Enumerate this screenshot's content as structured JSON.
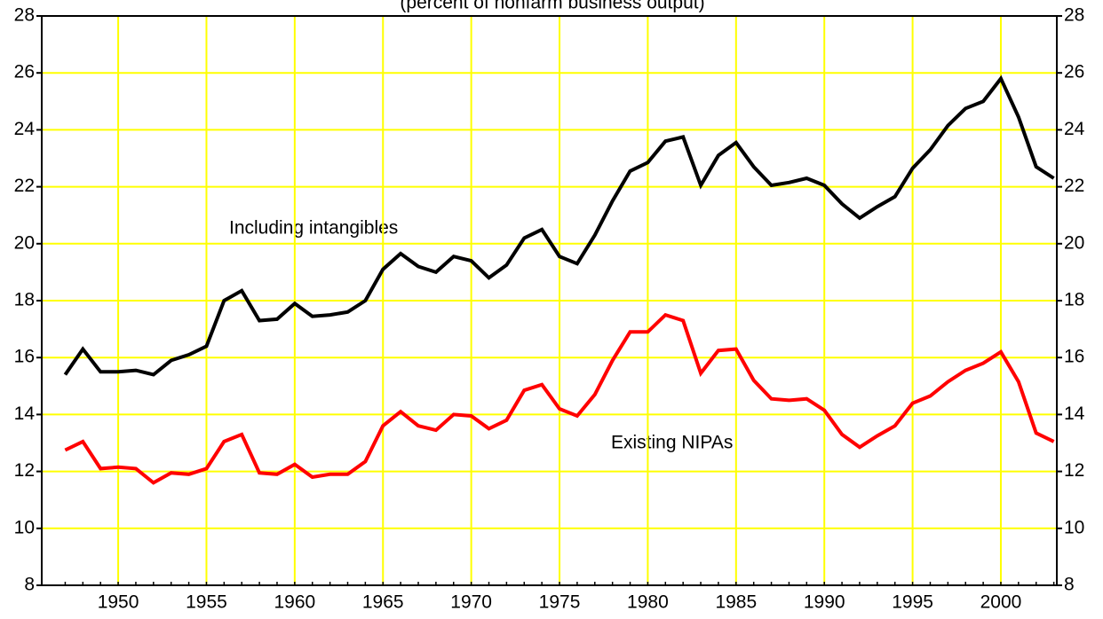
{
  "chart_data": {
    "type": "line",
    "title": "(percent of nonfarm business output)",
    "annotations": [
      "Including intangibles",
      "Existing NIPAs"
    ],
    "x": [
      1947,
      1948,
      1949,
      1950,
      1951,
      1952,
      1953,
      1954,
      1955,
      1956,
      1957,
      1958,
      1959,
      1960,
      1961,
      1962,
      1963,
      1964,
      1965,
      1966,
      1967,
      1968,
      1969,
      1970,
      1971,
      1972,
      1973,
      1974,
      1975,
      1976,
      1977,
      1978,
      1979,
      1980,
      1981,
      1982,
      1983,
      1984,
      1985,
      1986,
      1987,
      1988,
      1989,
      1990,
      1991,
      1992,
      1993,
      1994,
      1995,
      1996,
      1997,
      1998,
      1999,
      2000,
      2001,
      2002,
      2003
    ],
    "series": [
      {
        "name": "Including intangibles",
        "color": "#000000",
        "values": [
          15.4,
          16.3,
          15.5,
          15.5,
          15.55,
          15.4,
          15.9,
          16.1,
          16.4,
          18.0,
          18.35,
          17.3,
          17.35,
          17.9,
          17.45,
          17.5,
          17.6,
          18.0,
          19.1,
          19.65,
          19.2,
          19.0,
          19.55,
          19.4,
          18.8,
          19.25,
          20.2,
          20.5,
          19.55,
          19.3,
          20.3,
          21.5,
          22.55,
          22.85,
          23.6,
          23.75,
          22.05,
          23.1,
          23.55,
          22.7,
          22.05,
          22.15,
          22.3,
          22.05,
          21.4,
          20.9,
          21.3,
          21.65,
          22.65,
          23.3,
          24.15,
          24.75,
          25.0,
          25.8,
          24.45,
          22.7,
          22.3
        ]
      },
      {
        "name": "Existing NIPAs",
        "color": "#ff0000",
        "values": [
          12.75,
          13.05,
          12.1,
          12.15,
          12.1,
          11.6,
          11.95,
          11.9,
          12.1,
          13.05,
          13.3,
          11.95,
          11.9,
          12.25,
          11.8,
          11.9,
          11.9,
          12.35,
          13.6,
          14.1,
          13.6,
          13.45,
          14.0,
          13.95,
          13.5,
          13.8,
          14.85,
          15.05,
          14.2,
          13.95,
          14.7,
          15.9,
          16.9,
          16.9,
          17.5,
          17.3,
          15.45,
          16.25,
          16.3,
          15.2,
          14.55,
          14.5,
          14.55,
          14.15,
          13.3,
          12.85,
          13.25,
          13.6,
          14.4,
          14.65,
          15.15,
          15.55,
          15.8,
          16.2,
          15.15,
          13.35,
          13.05
        ]
      }
    ],
    "xlim": [
      1945.67,
      2003.17
    ],
    "xticks": [
      1950,
      1955,
      1960,
      1965,
      1970,
      1975,
      1980,
      1985,
      1990,
      1995,
      2000
    ],
    "ylim": [
      8,
      28
    ],
    "yticks": [
      8,
      10,
      12,
      14,
      16,
      18,
      20,
      22,
      24,
      26,
      28
    ],
    "grid": true,
    "grid_color": "#ffff00"
  }
}
